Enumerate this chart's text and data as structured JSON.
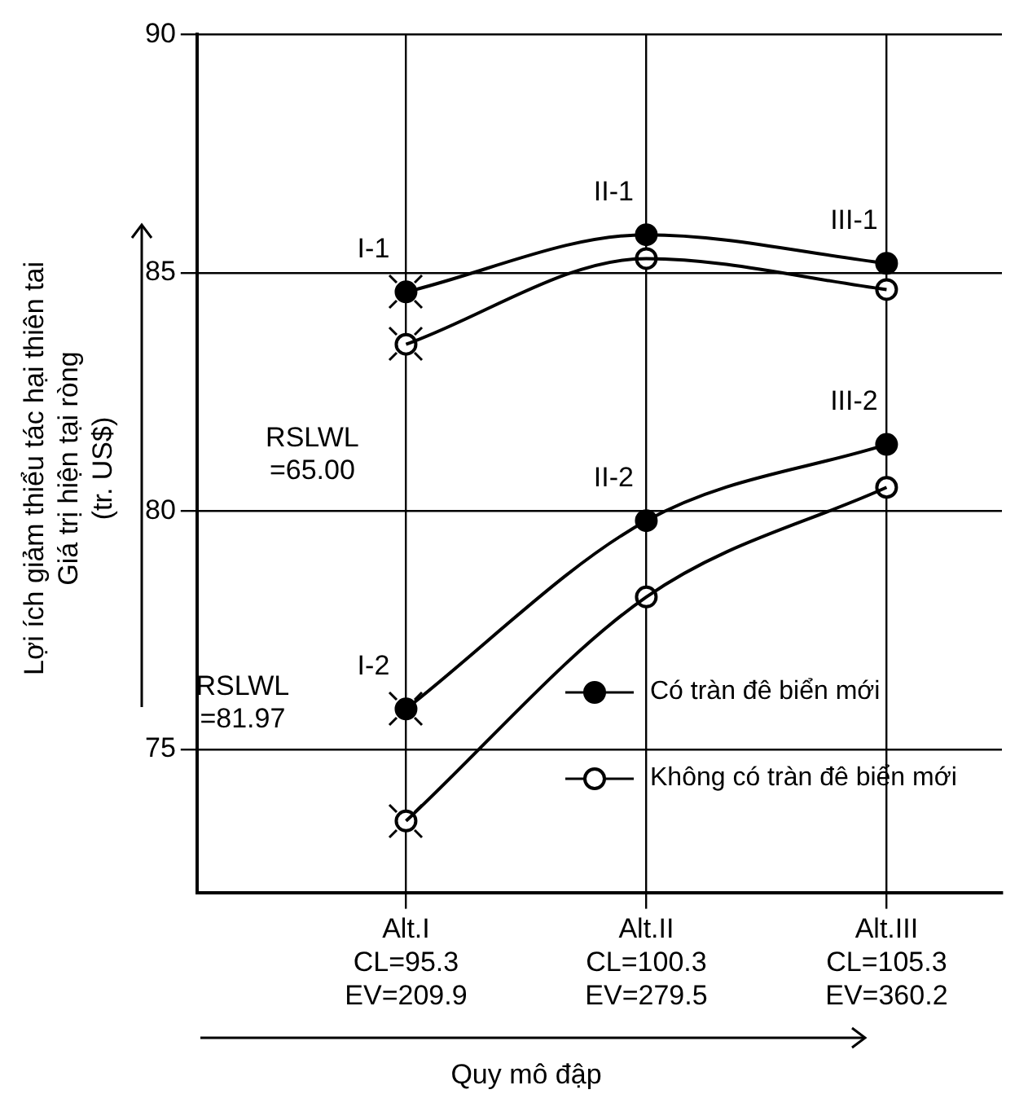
{
  "chart_data": {
    "type": "line",
    "ylabel": "Lợi ích giảm thiểu tác hại thiên tai\nGiá trị hiện tại ròng\n(tr. US$)",
    "xlabel": "Quy mô đập",
    "categories": [
      "Alt.I\nCL=95.3\nEV=209.9",
      "Alt.II\nCL=100.3\nEV=279.5",
      "Alt.III\nCL=105.3\nEV=360.2"
    ],
    "ylim": [
      72,
      90
    ],
    "yticks": [
      75,
      80,
      85,
      90
    ],
    "grid": true,
    "legend": "bottom right",
    "line_style": "solid",
    "series": [
      {
        "name": "Có tràn đê biển mới",
        "marker": "circle",
        "color": "#000000",
        "values": [
          84.6,
          85.8,
          85.2
        ]
      },
      {
        "marker": "circle",
        "color": "#000000",
        "values": [
          75.85,
          79.8,
          81.4
        ]
      },
      {
        "marker": "none",
        "color": "#000000",
        "values": [
          83.5,
          85.3,
          84.65
        ]
      },
      {
        "marker": "none",
        "color": "#000000",
        "values": [
          73.5,
          78.2,
          80.5
        ]
      },
      {
        "type": "scatter",
        "name": "Không có tràn đê biển mới",
        "marker": "circle",
        "color": "#ffffff",
        "x": [
          "Alt.I\nCL=95.3\nEV=209.9",
          "Alt.II\nCL=100.3\nEV=279.5",
          "Alt.III\nCL=105.3\nEV=360.2",
          "Alt.I\nCL=95.3\nEV=209.9",
          "Alt.II\nCL=100.3\nEV=279.5",
          "Alt.III\nCL=105.3\nEV=360.2"
        ],
        "values": [
          83.5,
          85.3,
          84.65,
          73.5,
          78.2,
          80.5
        ]
      }
    ],
    "annotations": [
      {
        "text": "I-1",
        "x": "Alt.I\nCL=95.3\nEV=209.9",
        "y": 84.6
      },
      {
        "text": "II-1",
        "x": "Alt.II\nCL=100.3\nEV=279.5",
        "y": 85.8
      },
      {
        "text": "III-1",
        "x": "Alt.III\nCL=105.3\nEV=360.2",
        "y": 85.2
      },
      {
        "text": "I-2",
        "x": "Alt.I\nCL=95.3\nEV=209.9",
        "y": 75.85
      },
      {
        "text": "II-2",
        "x": "Alt.II\nCL=100.3\nEV=279.5",
        "y": 79.8
      },
      {
        "text": "III-2",
        "x": "Alt.III\nCL=105.3\nEV=360.2",
        "y": 81.4
      },
      "RSLWL\n=65.00",
      "RSLWL\n=81.97"
    ]
  }
}
